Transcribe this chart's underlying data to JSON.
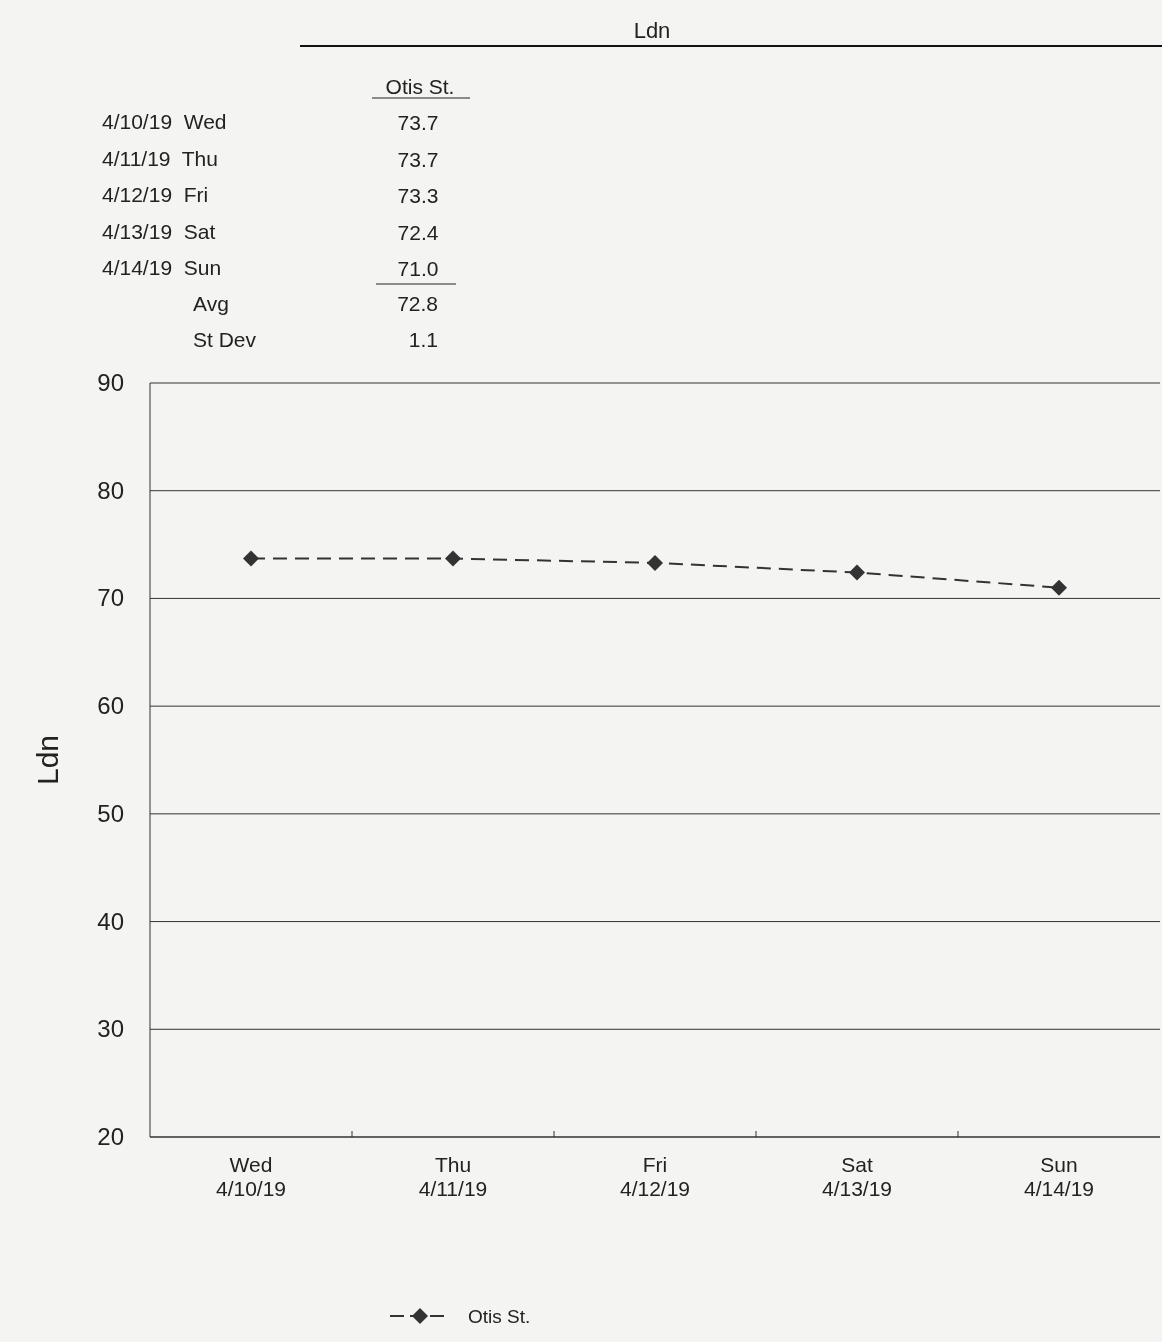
{
  "chart_data": {
    "type": "line",
    "title": "Ldn",
    "ylabel": "Ldn",
    "categories": [
      "Wed\n4/10/19",
      "Thu\n4/11/19",
      "Fri\n4/12/19",
      "Sat\n4/13/19",
      "Sun\n4/14/19"
    ],
    "series": [
      {
        "name": "Otis St.",
        "color": "#333333",
        "values": [
          73.7,
          73.7,
          73.3,
          72.4,
          71.0
        ]
      }
    ],
    "annotations": [
      "4/10/19  Wed",
      "4/11/19  Thu",
      "4/12/19  Fri",
      "4/13/19  Sat",
      "4/14/19  Sun",
      "73.7",
      "73.7",
      "73.3",
      "72.4",
      "71.0",
      "Avg",
      "72.8",
      "St Dev",
      "1.1"
    ],
    "ylim": [
      20,
      90
    ],
    "yticks": [
      20,
      30,
      40,
      50,
      60,
      70,
      80,
      90
    ],
    "grid": "y",
    "legend": "bottom",
    "marker": "diamond",
    "line_style": "dashed"
  }
}
